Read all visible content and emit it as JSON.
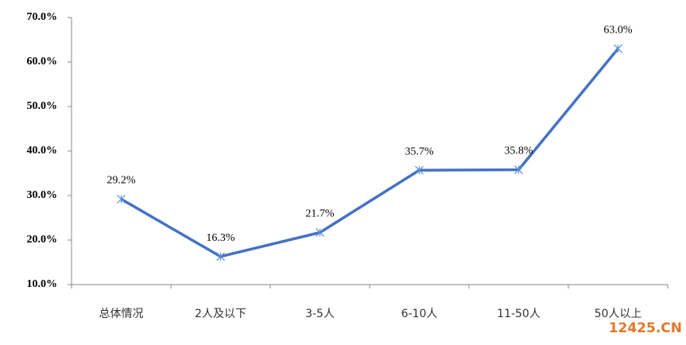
{
  "chart_data": {
    "type": "line",
    "categories": [
      "总体情况",
      "2人及以下",
      "3-5人",
      "6-10人",
      "11-50人",
      "50人以上"
    ],
    "series": [
      {
        "color": "#4472c4",
        "values": [
          29.2,
          16.3,
          21.7,
          35.7,
          35.8,
          63.0
        ],
        "value_labels": [
          "29.2%",
          "16.3%",
          "21.7%",
          "35.7%",
          "35.8%",
          "63.0%"
        ]
      }
    ],
    "ylim": [
      10,
      70
    ],
    "yticks": [
      {
        "value": 10,
        "label": "10.0%"
      },
      {
        "value": 20,
        "label": "20.0%"
      },
      {
        "value": 30,
        "label": "30.0%"
      },
      {
        "value": 40,
        "label": "40.0%"
      },
      {
        "value": 50,
        "label": "50.0%"
      },
      {
        "value": 60,
        "label": "60.0%"
      },
      {
        "value": 70,
        "label": "70.0%"
      }
    ],
    "grid": false,
    "watermark": "12425.CN"
  }
}
